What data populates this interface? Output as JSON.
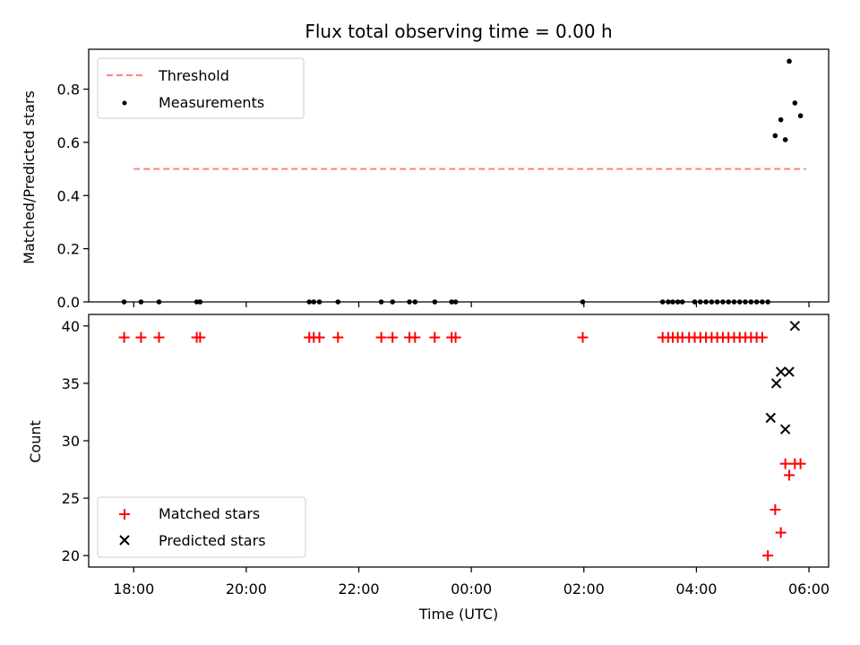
{
  "chart_data": [
    {
      "type": "scatter",
      "title": "Flux total observing time = 0.00 h",
      "xlabel": "",
      "ylabel": "Matched/Predicted stars",
      "xlim": [
        -0.8,
        12.35
      ],
      "ylim": [
        0,
        0.95
      ],
      "yticks": [
        0.0,
        0.2,
        0.4,
        0.6,
        0.8
      ],
      "ytick_labels": [
        "0.0",
        "0.2",
        "0.4",
        "0.6",
        "0.8"
      ],
      "legend": {
        "location": "upper-left",
        "entries": [
          "Threshold",
          "Measurements"
        ]
      },
      "threshold": {
        "name": "Threshold",
        "y": 0.5,
        "x_range": [
          0,
          11.95
        ],
        "color": "#ff8080",
        "style": "dashed"
      },
      "measurements": {
        "name": "Measurements",
        "color": "#000000",
        "x": [
          -0.17,
          0.13,
          0.45,
          1.12,
          1.18,
          3.12,
          3.2,
          3.3,
          3.63,
          4.4,
          4.6,
          4.9,
          5.0,
          5.35,
          5.65,
          5.72,
          7.98,
          9.4,
          9.5,
          9.58,
          9.67,
          9.75,
          9.97,
          10.07,
          10.17,
          10.27,
          10.37,
          10.47,
          10.57,
          10.67,
          10.77,
          10.87,
          10.97,
          11.07,
          11.17,
          11.27,
          11.4,
          11.5,
          11.58,
          11.65,
          11.75
        ],
        "y": [
          0,
          0,
          0,
          0,
          0,
          0,
          0,
          0,
          0,
          0,
          0,
          0,
          0,
          0,
          0,
          0,
          0,
          0,
          0,
          0,
          0,
          0,
          0,
          0,
          0,
          0,
          0,
          0,
          0,
          0,
          0,
          0,
          0,
          0,
          0,
          0,
          0.625,
          0.685,
          0.61,
          0.905,
          0.748
        ]
      },
      "extra_point": {
        "x": 11.85,
        "y": 0.7
      }
    },
    {
      "type": "scatter",
      "title": "",
      "xlabel": "Time (UTC)",
      "ylabel": "Count",
      "xlim": [
        -0.8,
        12.35
      ],
      "ylim": [
        19,
        41
      ],
      "yticks": [
        20,
        25,
        30,
        35,
        40
      ],
      "ytick_labels": [
        "20",
        "25",
        "30",
        "35",
        "40"
      ],
      "xticks": [
        0,
        2,
        4,
        6,
        8,
        10,
        12
      ],
      "xtick_labels": [
        "18:00",
        "20:00",
        "22:00",
        "00:00",
        "02:00",
        "04:00",
        "06:00"
      ],
      "legend": {
        "location": "lower-left",
        "entries": [
          "Matched stars",
          "Predicted stars"
        ]
      },
      "series": [
        {
          "name": "Matched stars",
          "marker": "plus",
          "color": "#ff0000",
          "x": [
            -0.17,
            0.13,
            0.45,
            1.12,
            1.18,
            3.12,
            3.2,
            3.3,
            3.63,
            4.4,
            4.6,
            4.9,
            5.0,
            5.35,
            5.65,
            5.72,
            7.98,
            9.4,
            9.5,
            9.58,
            9.67,
            9.75,
            9.87,
            9.97,
            10.07,
            10.17,
            10.27,
            10.37,
            10.47,
            10.57,
            10.67,
            10.77,
            10.87,
            10.97,
            11.07,
            11.17,
            11.27,
            11.4,
            11.5,
            11.58,
            11.65,
            11.75,
            11.85
          ],
          "y": [
            39,
            39,
            39,
            39,
            39,
            39,
            39,
            39,
            39,
            39,
            39,
            39,
            39,
            39,
            39,
            39,
            39,
            39,
            39,
            39,
            39,
            39,
            39,
            39,
            39,
            39,
            39,
            39,
            39,
            39,
            39,
            39,
            39,
            39,
            39,
            39,
            20,
            24,
            22,
            28,
            27,
            28,
            28
          ]
        },
        {
          "name": "Predicted stars",
          "marker": "x",
          "color": "#000000",
          "x": [
            11.32,
            11.42,
            11.5,
            11.58,
            11.65,
            11.75
          ],
          "y": [
            32,
            35,
            36,
            31,
            36,
            40
          ]
        }
      ]
    }
  ]
}
